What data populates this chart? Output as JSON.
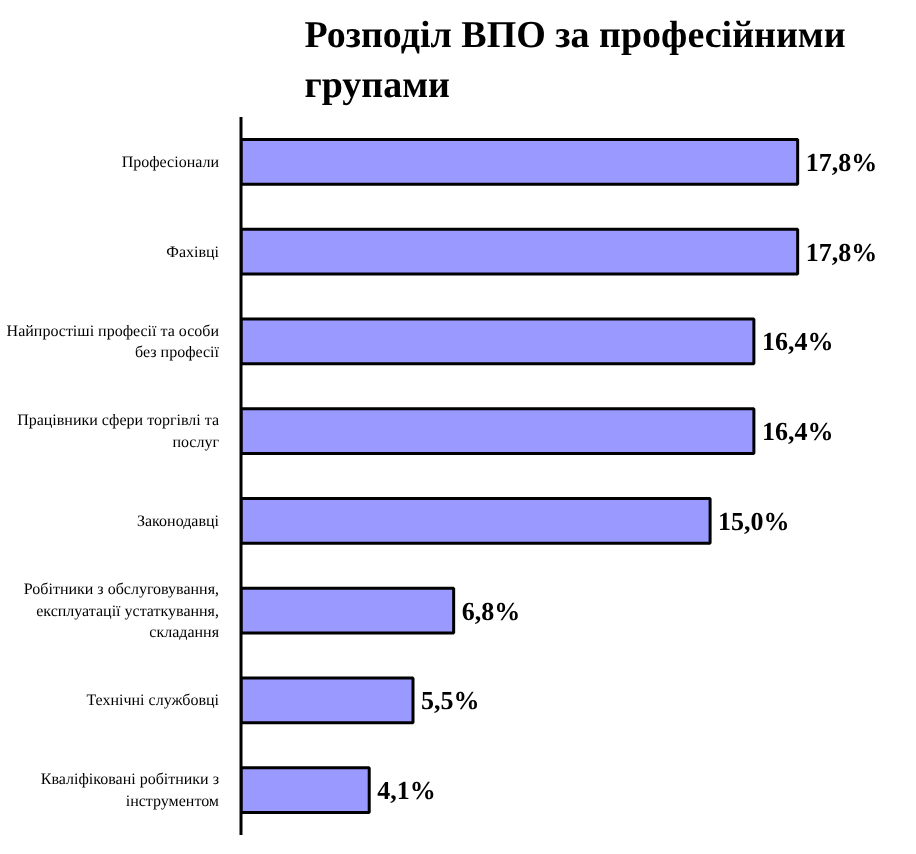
{
  "chart_data": {
    "type": "bar",
    "orientation": "horizontal",
    "title": "Розподіл ВПО за професійними групами",
    "categories": [
      "Професіонали",
      "Фахівці",
      "Найпростіші професії та особи без професії",
      "Працівники сфери торгівлі та послуг",
      "Законодавці",
      "Робітники з обслуговування, експлуатації устаткування, складання",
      "Технічні службовці",
      "Кваліфіковані робітники з інструментом"
    ],
    "values": [
      17.8,
      17.8,
      16.4,
      16.4,
      15.0,
      6.8,
      5.5,
      4.1
    ],
    "value_labels": [
      "17,8%",
      "17,8%",
      "16,4%",
      "16,4%",
      "15,0%",
      "6,8%",
      "5,5%",
      "4,1%"
    ],
    "color": "#9999ff",
    "grid": false
  }
}
